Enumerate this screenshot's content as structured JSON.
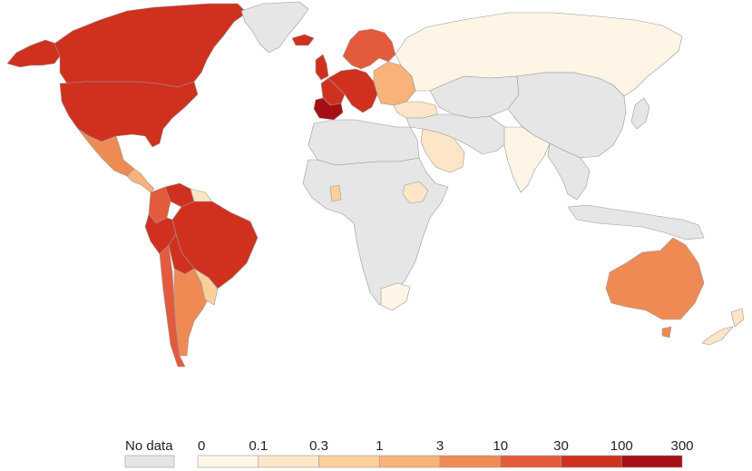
{
  "colors": {
    "no_data": "#e6e6e6",
    "c0": "#fef5e6",
    "c1": "#fde6c7",
    "c2": "#fcd09a",
    "c3": "#f9b27a",
    "c4": "#f08a55",
    "c5": "#e45a3c",
    "c6": "#d0311f",
    "c7": "#a50f15",
    "border": "#9a9a9a"
  },
  "legend": {
    "no_data_label": "No data",
    "tick_labels": [
      "0",
      "0.1",
      "0.3",
      "1",
      "3",
      "10",
      "30",
      "100",
      "300"
    ]
  },
  "regions": [
    {
      "name": "canada",
      "bin": 6
    },
    {
      "name": "usa",
      "bin": 6
    },
    {
      "name": "alaska",
      "bin": 6
    },
    {
      "name": "greenland",
      "bin": -1
    },
    {
      "name": "mexico",
      "bin": 4
    },
    {
      "name": "central-america",
      "bin": 3
    },
    {
      "name": "colombia",
      "bin": 5
    },
    {
      "name": "venezuela",
      "bin": 6
    },
    {
      "name": "guianas",
      "bin": 1
    },
    {
      "name": "brazil",
      "bin": 6
    },
    {
      "name": "peru",
      "bin": 6
    },
    {
      "name": "bolivia",
      "bin": 6
    },
    {
      "name": "chile",
      "bin": 5
    },
    {
      "name": "argentina",
      "bin": 4
    },
    {
      "name": "uruguay-paraguay",
      "bin": 2
    },
    {
      "name": "iceland",
      "bin": 6
    },
    {
      "name": "uk",
      "bin": 6
    },
    {
      "name": "spain",
      "bin": 7
    },
    {
      "name": "france",
      "bin": 6
    },
    {
      "name": "western-europe",
      "bin": 6
    },
    {
      "name": "scandinavia",
      "bin": 5
    },
    {
      "name": "eastern-europe",
      "bin": 3
    },
    {
      "name": "russia",
      "bin": 0
    },
    {
      "name": "turkey",
      "bin": 1
    },
    {
      "name": "kazakhstan-central-asia",
      "bin": -1
    },
    {
      "name": "china-mongolia",
      "bin": -1
    },
    {
      "name": "middle-east",
      "bin": -1
    },
    {
      "name": "saudi-arabia",
      "bin": 1
    },
    {
      "name": "india",
      "bin": 0
    },
    {
      "name": "southeast-asia",
      "bin": -1
    },
    {
      "name": "japan",
      "bin": -1
    },
    {
      "name": "north-africa",
      "bin": -1
    },
    {
      "name": "africa",
      "bin": -1
    },
    {
      "name": "ghana",
      "bin": 2
    },
    {
      "name": "ethiopia",
      "bin": 1
    },
    {
      "name": "south-africa",
      "bin": 0
    },
    {
      "name": "australia",
      "bin": 4
    },
    {
      "name": "tasmania",
      "bin": 4
    },
    {
      "name": "new-zealand",
      "bin": 1
    },
    {
      "name": "indonesia-png",
      "bin": -1
    }
  ]
}
